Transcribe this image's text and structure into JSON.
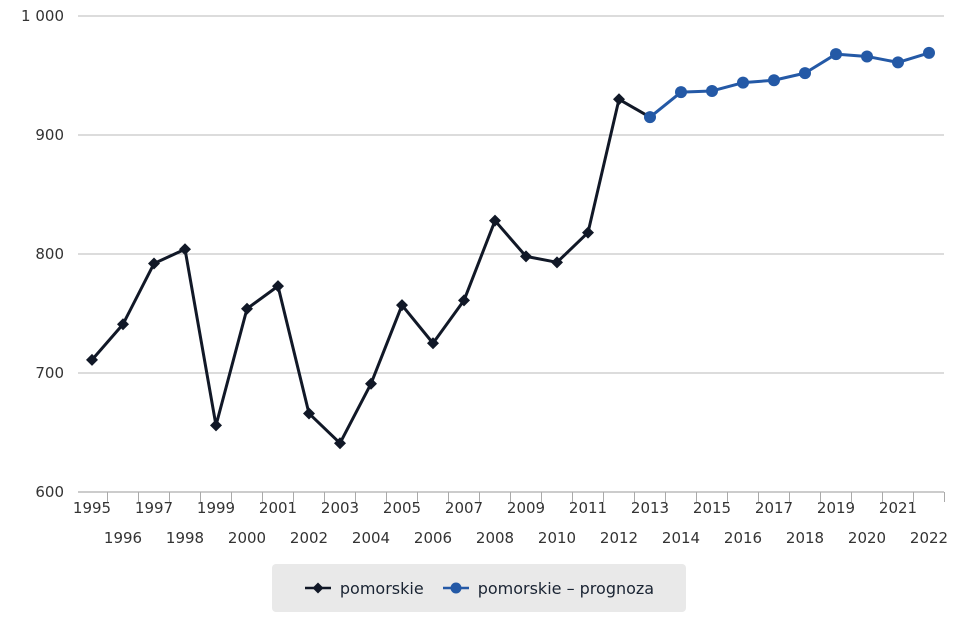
{
  "chart_data": {
    "type": "line",
    "x": [
      "1995",
      "1996",
      "1997",
      "1998",
      "1999",
      "2000",
      "2001",
      "2002",
      "2003",
      "2004",
      "2005",
      "2006",
      "2007",
      "2008",
      "2009",
      "2010",
      "2011",
      "2012",
      "2013",
      "2014",
      "2015",
      "2016",
      "2017",
      "2018",
      "2019",
      "2020",
      "2021",
      "2022"
    ],
    "y_ticks": [
      "600",
      "700",
      "800",
      "900",
      "1 000"
    ],
    "ylim": [
      600,
      1000
    ],
    "grid": true,
    "legend_position": "bottom-center",
    "series": [
      {
        "name": "pomorskie",
        "color": "#111827",
        "marker": "diamond",
        "x": [
          "1995",
          "1996",
          "1997",
          "1998",
          "1999",
          "2000",
          "2001",
          "2002",
          "2003",
          "2004",
          "2005",
          "2006",
          "2007",
          "2008",
          "2009",
          "2010",
          "2011",
          "2012",
          "2013"
        ],
        "values": [
          711,
          741,
          792,
          804,
          656,
          754,
          773,
          666,
          641,
          691,
          757,
          725,
          761,
          828,
          798,
          793,
          818,
          930,
          915
        ]
      },
      {
        "name": "pomorskie – prognoza",
        "color": "#2459a6",
        "marker": "circle",
        "x": [
          "2013",
          "2014",
          "2015",
          "2016",
          "2017",
          "2018",
          "2019",
          "2020",
          "2021",
          "2022"
        ],
        "values": [
          915,
          936,
          937,
          944,
          946,
          952,
          968,
          966,
          961,
          969
        ]
      }
    ]
  }
}
